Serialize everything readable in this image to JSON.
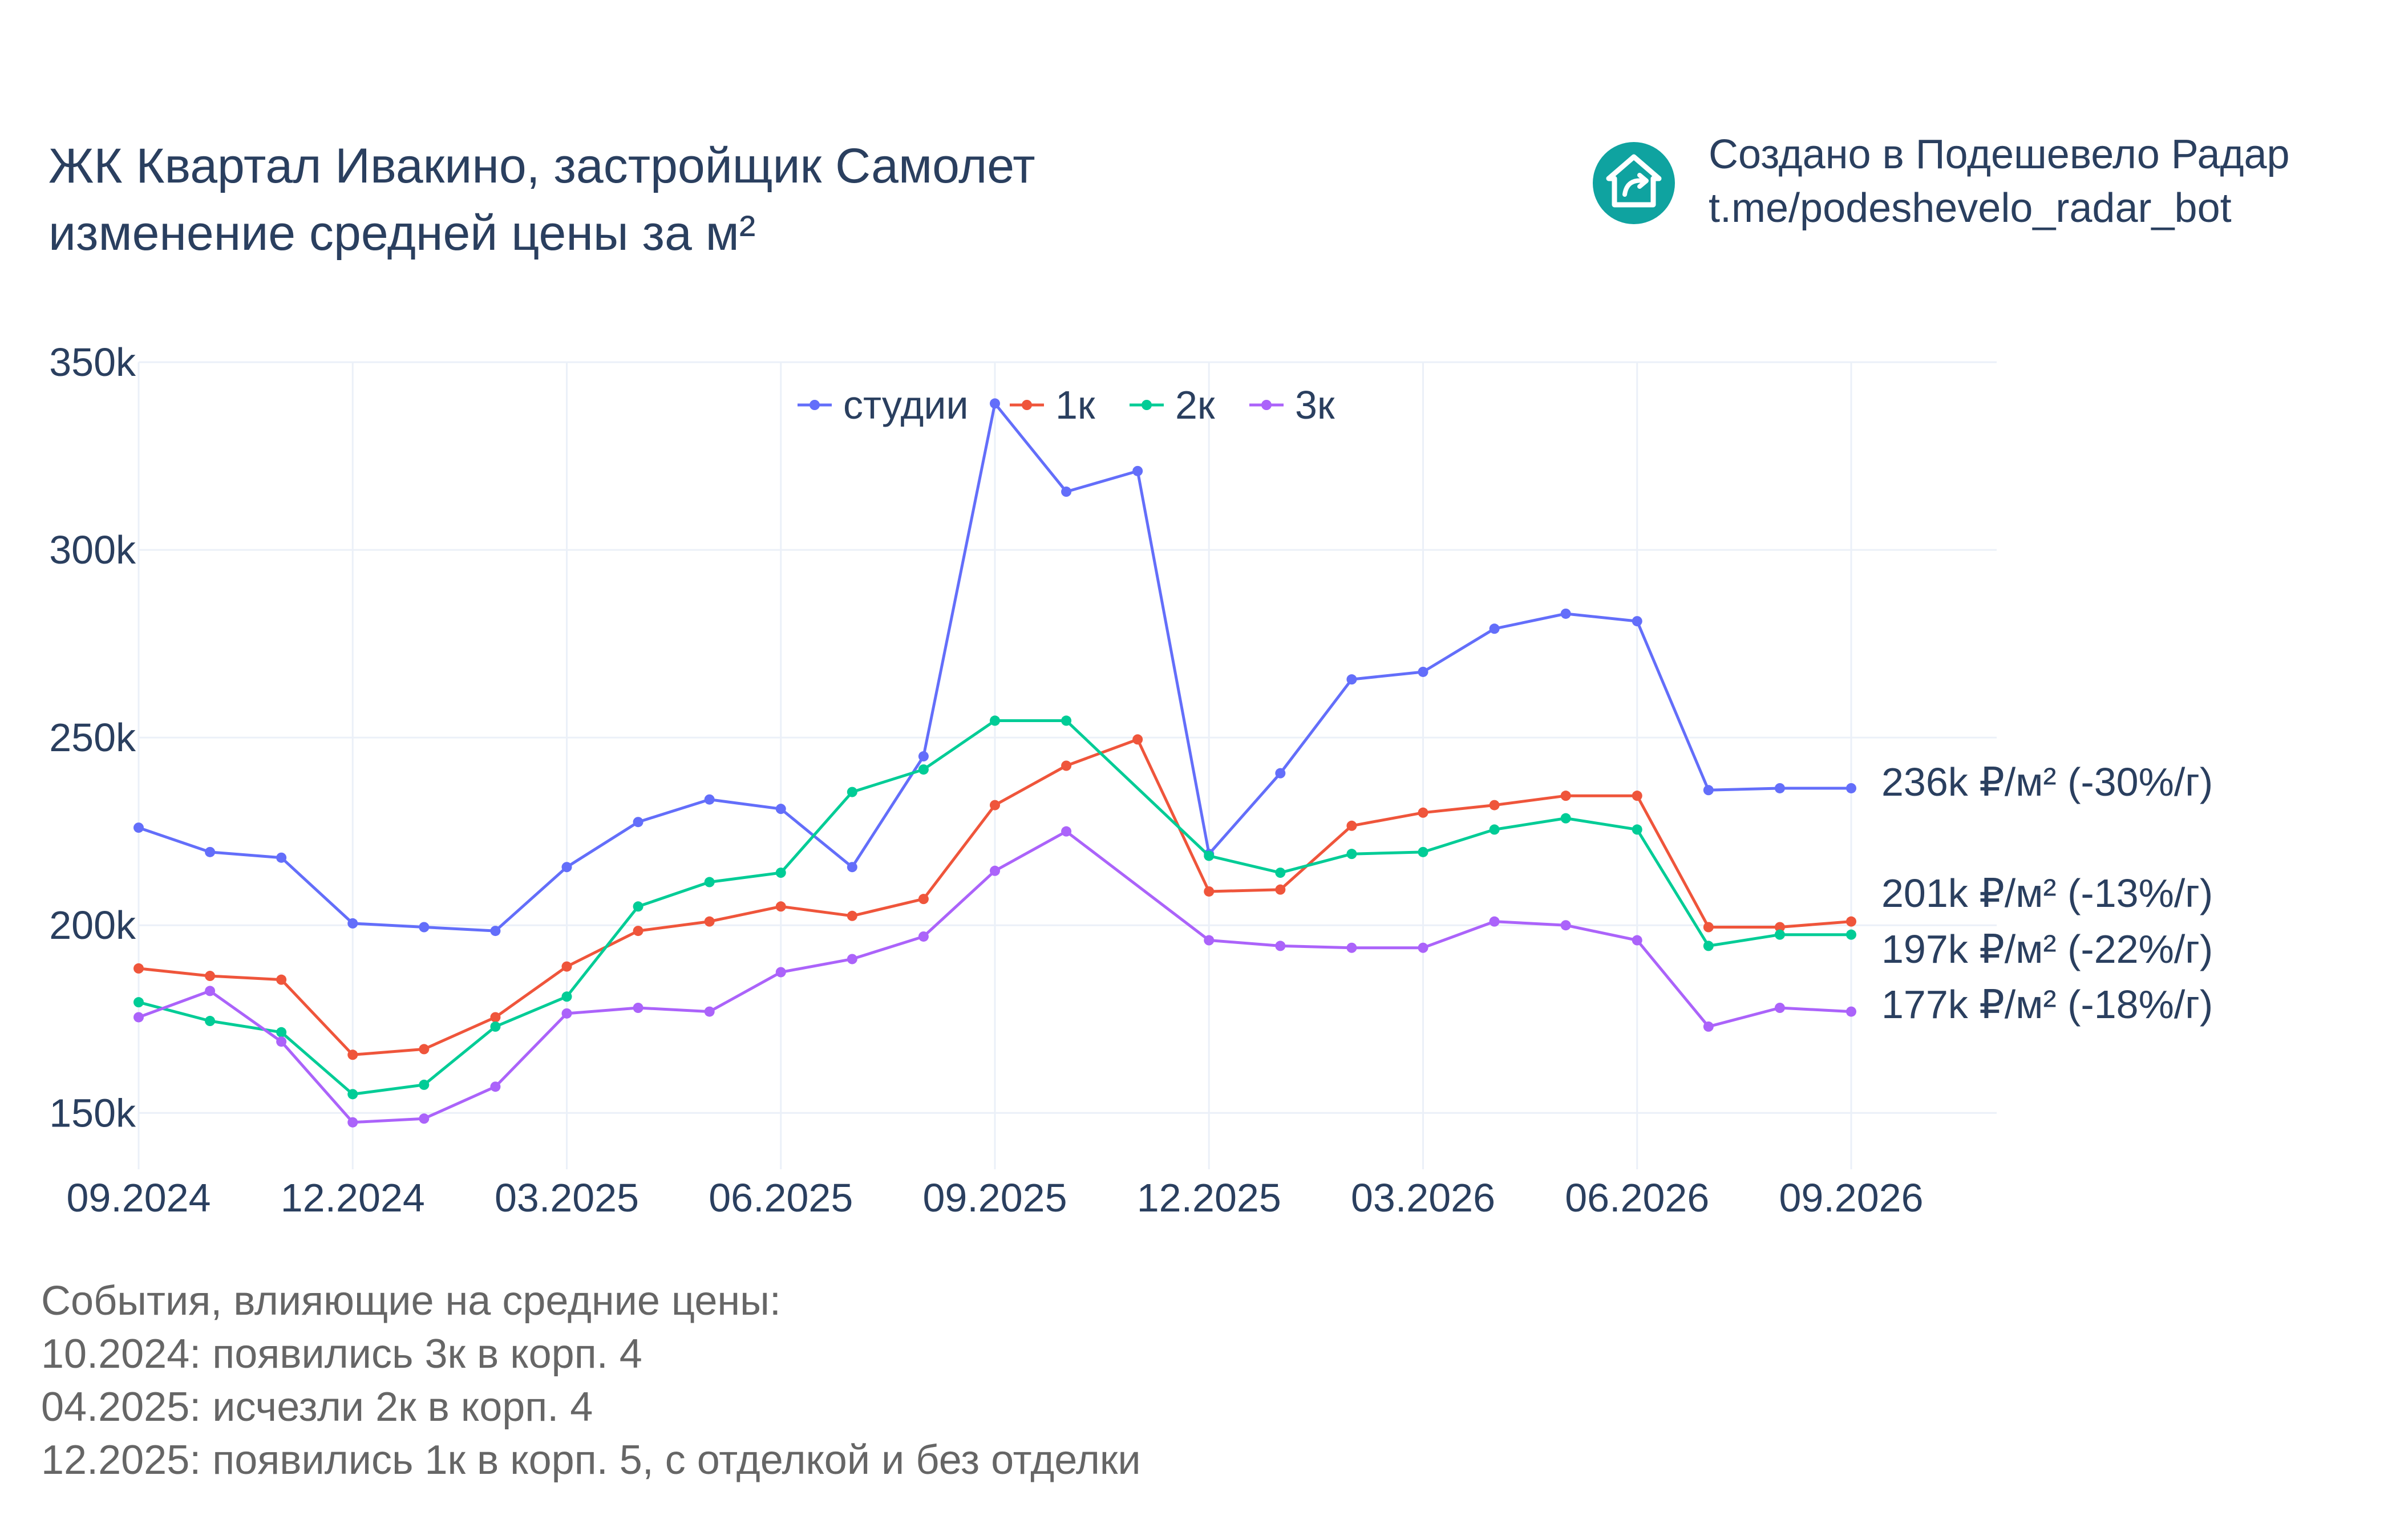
{
  "header": {
    "title_line1": "ЖК Квартал Ивакино, застройщик Самолет",
    "title_line2": "изменение средней цены за м²"
  },
  "credit": {
    "line1": "Создано в Подешевело Радар",
    "line2": "t.me/podeshevelo_radar_bot",
    "icon": "house-arrow-icon",
    "color": "#0fa3a0"
  },
  "events": {
    "heading": "События, влияющие на средние цены:",
    "items": [
      "10.2024: появились 3к в корп. 4",
      "04.2025: исчезли 2к в корп. 4",
      "12.2025: появились 1к в корп. 5, с отделкой и без отделки"
    ]
  },
  "chart_data": {
    "type": "line",
    "title": "ЖК Квартал Ивакино, застройщик Самолет изменение средней цены за м²",
    "xlabel": "",
    "ylabel": "",
    "x": [
      "09.2024",
      "10.2024",
      "11.2024",
      "12.2024",
      "01.2025",
      "02.2025",
      "03.2025",
      "04.2025",
      "05.2025",
      "06.2025",
      "07.2025",
      "08.2025",
      "09.2025",
      "10.2025",
      "11.2025",
      "12.2025",
      "01.2026",
      "02.2026",
      "03.2026",
      "04.2026",
      "05.2026",
      "06.2026",
      "07.2026",
      "08.2026",
      "09.2026"
    ],
    "x_ticks": [
      "09.2024",
      "12.2024",
      "03.2025",
      "06.2025",
      "09.2025",
      "12.2025",
      "03.2026",
      "06.2026",
      "09.2026"
    ],
    "y_ticks": [
      150000,
      200000,
      250000,
      300000,
      350000
    ],
    "y_tick_labels": [
      "150k",
      "200k",
      "250k",
      "300k",
      "350k"
    ],
    "ylim": [
      135000,
      350000
    ],
    "grid": true,
    "legend_position": "top-center",
    "series": [
      {
        "name": "студии",
        "color": "#636efa",
        "end_label": "236k ₽/м² (-30%/г)",
        "values": [
          226000,
          219500,
          218000,
          200500,
          199500,
          198500,
          215500,
          227500,
          233500,
          231000,
          215500,
          245000,
          339000,
          315500,
          321000,
          219000,
          240500,
          265500,
          267500,
          279000,
          283000,
          281000,
          236000,
          236500,
          236500
        ]
      },
      {
        "name": "1к",
        "color": "#ef553b",
        "end_label": "201k ₽/м² (-13%/г)",
        "values": [
          188500,
          186500,
          185500,
          165500,
          167000,
          175500,
          189000,
          198500,
          201000,
          205000,
          202500,
          207000,
          232000,
          242500,
          249500,
          209000,
          209500,
          226500,
          230000,
          232000,
          234500,
          234500,
          199500,
          199500,
          201000
        ]
      },
      {
        "name": "2к",
        "color": "#00cc96",
        "end_label": "197k ₽/м² (-22%/г)",
        "values": [
          179500,
          174500,
          171500,
          155000,
          157500,
          173000,
          181000,
          205000,
          211500,
          214000,
          235500,
          241500,
          254500,
          254500,
          null,
          218500,
          214000,
          219000,
          219500,
          225500,
          228500,
          225500,
          194500,
          197500,
          197500
        ]
      },
      {
        "name": "3к",
        "color": "#ab63fa",
        "end_label": "177k ₽/м² (-18%/г)",
        "values": [
          175500,
          182500,
          169000,
          147500,
          148500,
          157000,
          176500,
          178000,
          177000,
          187500,
          191000,
          197000,
          214500,
          225000,
          null,
          196000,
          194500,
          194000,
          194000,
          201000,
          200000,
          196000,
          173000,
          178000,
          177000
        ]
      }
    ]
  }
}
